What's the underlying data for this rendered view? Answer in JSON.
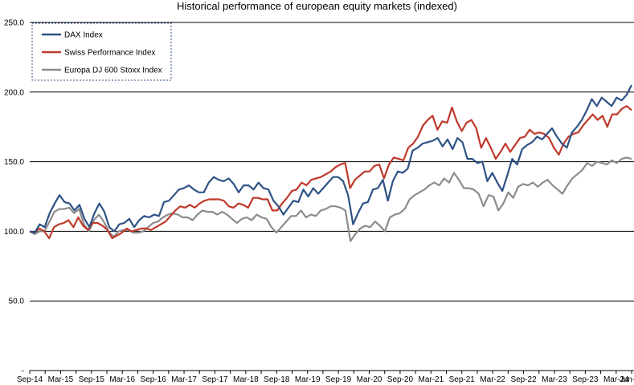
{
  "chart_data": {
    "type": "line",
    "title": "Historical performance of european equity markets (indexed)",
    "ylim": [
      0,
      250
    ],
    "yticks": [
      "-",
      "50.0",
      "100.0",
      "150.0",
      "200.0",
      "250.0"
    ],
    "ytick_values": [
      0,
      50,
      100,
      150,
      200,
      250
    ],
    "xticks": [
      "Sep-14",
      "Mar-15",
      "Sep-15",
      "Mar-16",
      "Sep-16",
      "Mar-17",
      "Sep-17",
      "Mar-18",
      "Sep-18",
      "Mar-19",
      "Sep-19",
      "Mar-20",
      "Sep-20",
      "Mar-21",
      "Sep-21",
      "Mar-22",
      "Sep-22",
      "Mar-23",
      "Sep-23",
      "Mar-24",
      "Jun-24"
    ],
    "xtick_months": [
      0,
      6,
      12,
      18,
      24,
      30,
      36,
      42,
      48,
      54,
      60,
      66,
      72,
      78,
      84,
      90,
      96,
      102,
      108,
      114,
      117
    ],
    "grid": true,
    "legend_position": "top-left",
    "series": [
      {
        "name": "DAX Index",
        "color": "#2f5285",
        "values": [
          100,
          99,
          105,
          103,
          113,
          120,
          126,
          121,
          120,
          115,
          119,
          109,
          103,
          113,
          120,
          114,
          103,
          100,
          105,
          106,
          109,
          103,
          108,
          111,
          110,
          112,
          111,
          121,
          122,
          126,
          130,
          131,
          133,
          130,
          128,
          128,
          135,
          139,
          137,
          136,
          138,
          134,
          128,
          133,
          133,
          130,
          135,
          131,
          130,
          122,
          118,
          112,
          117,
          122,
          121,
          130,
          125,
          131,
          127,
          131,
          135,
          139,
          139,
          136,
          126,
          105,
          113,
          120,
          121,
          130,
          131,
          137,
          122,
          136,
          143,
          142,
          145,
          158,
          160,
          163,
          164,
          165,
          167,
          161,
          166,
          159,
          167,
          164,
          152,
          152,
          149,
          150,
          136,
          142,
          135,
          129,
          140,
          152,
          148,
          159,
          162,
          164,
          168,
          166,
          170,
          174,
          168,
          163,
          160,
          171,
          175,
          180,
          187,
          195,
          190,
          196,
          193,
          190,
          196,
          194,
          198,
          205
        ]
      },
      {
        "name": "Swiss Performance Index",
        "color": "#c0392b",
        "values": [
          100,
          99,
          102,
          100,
          95,
          103,
          105,
          106,
          108,
          103,
          110,
          104,
          101,
          106,
          106,
          104,
          101,
          95,
          97,
          99,
          102,
          100,
          101,
          102,
          102,
          101,
          103,
          105,
          107,
          111,
          115,
          118,
          117,
          119,
          117,
          120,
          122,
          123,
          123,
          123,
          122,
          118,
          117,
          120,
          119,
          117,
          124,
          124,
          123,
          123,
          115,
          115,
          120,
          124,
          129,
          130,
          135,
          133,
          137,
          138,
          139,
          141,
          143,
          146,
          148,
          149,
          131,
          137,
          140,
          143,
          143,
          147,
          148,
          138,
          148,
          153,
          152,
          151,
          160,
          163,
          168,
          176,
          180,
          183,
          173,
          179,
          178,
          189,
          179,
          172,
          178,
          180,
          174,
          160,
          167,
          160,
          152,
          157,
          163,
          157,
          162,
          167,
          168,
          173,
          170,
          171,
          170,
          167,
          160,
          155,
          163,
          168,
          170,
          171,
          176,
          180,
          184,
          180,
          183,
          175,
          184,
          184,
          188,
          190,
          187
        ]
      },
      {
        "name": "Europa DJ 600 Stoxx Index",
        "color": "#8c8c8c",
        "values": [
          100,
          98,
          100,
          100,
          107,
          114,
          116,
          116,
          117,
          113,
          116,
          105,
          100,
          108,
          112,
          107,
          100,
          96,
          100,
          101,
          101,
          99,
          99,
          100,
          103,
          106,
          107,
          110,
          112,
          113,
          112,
          110,
          110,
          108,
          112,
          115,
          114,
          114,
          112,
          114,
          112,
          109,
          106,
          109,
          110,
          108,
          112,
          110,
          109,
          103,
          99,
          103,
          107,
          111,
          111,
          115,
          110,
          112,
          111,
          115,
          116,
          118,
          118,
          117,
          115,
          93,
          98,
          102,
          104,
          103,
          107,
          104,
          100,
          110,
          112,
          113,
          116,
          123,
          126,
          128,
          130,
          133,
          135,
          133,
          138,
          135,
          142,
          137,
          131,
          131,
          130,
          127,
          118,
          126,
          125,
          115,
          120,
          128,
          124,
          132,
          134,
          133,
          135,
          132,
          135,
          137,
          133,
          130,
          127,
          133,
          138,
          141,
          144,
          149,
          147,
          150,
          149,
          148,
          151,
          149,
          152,
          153,
          152
        ]
      }
    ]
  }
}
